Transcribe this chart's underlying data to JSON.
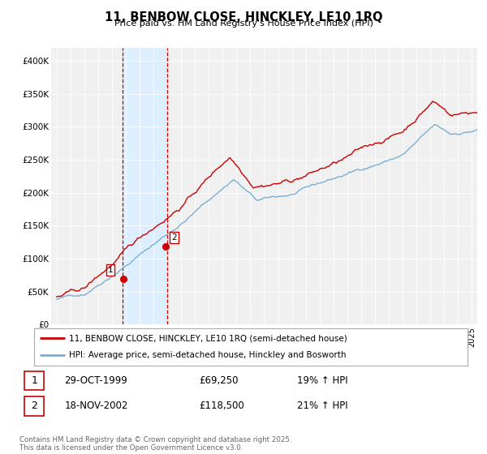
{
  "title": "11, BENBOW CLOSE, HINCKLEY, LE10 1RQ",
  "subtitle": "Price paid vs. HM Land Registry's House Price Index (HPI)",
  "legend_line1": "11, BENBOW CLOSE, HINCKLEY, LE10 1RQ (semi-detached house)",
  "legend_line2": "HPI: Average price, semi-detached house, Hinckley and Bosworth",
  "transaction1_date": "29-OCT-1999",
  "transaction1_price": "£69,250",
  "transaction1_hpi": "19% ↑ HPI",
  "transaction2_date": "18-NOV-2002",
  "transaction2_price": "£118,500",
  "transaction2_hpi": "21% ↑ HPI",
  "footnote": "Contains HM Land Registry data © Crown copyright and database right 2025.\nThis data is licensed under the Open Government Licence v3.0.",
  "house_price_color": "#cc0000",
  "hpi_color": "#7bafd4",
  "highlight_color": "#ddeeff",
  "highlight_border_color": "#cc0000",
  "ylim_min": 0,
  "ylim_max": 420000,
  "yticks": [
    0,
    50000,
    100000,
    150000,
    200000,
    250000,
    300000,
    350000,
    400000
  ],
  "ytick_labels": [
    "£0",
    "£50K",
    "£100K",
    "£150K",
    "£200K",
    "£250K",
    "£300K",
    "£350K",
    "£400K"
  ],
  "background_color": "#ffffff",
  "plot_bg_color": "#f0f0f0",
  "transaction1_x": 1999.83,
  "transaction2_x": 2002.88,
  "transaction1_y": 69250,
  "transaction2_y": 118500,
  "highlight_x1": 1999.75,
  "highlight_x2": 2003.0,
  "xmin": 1994.6,
  "xmax": 2025.4
}
